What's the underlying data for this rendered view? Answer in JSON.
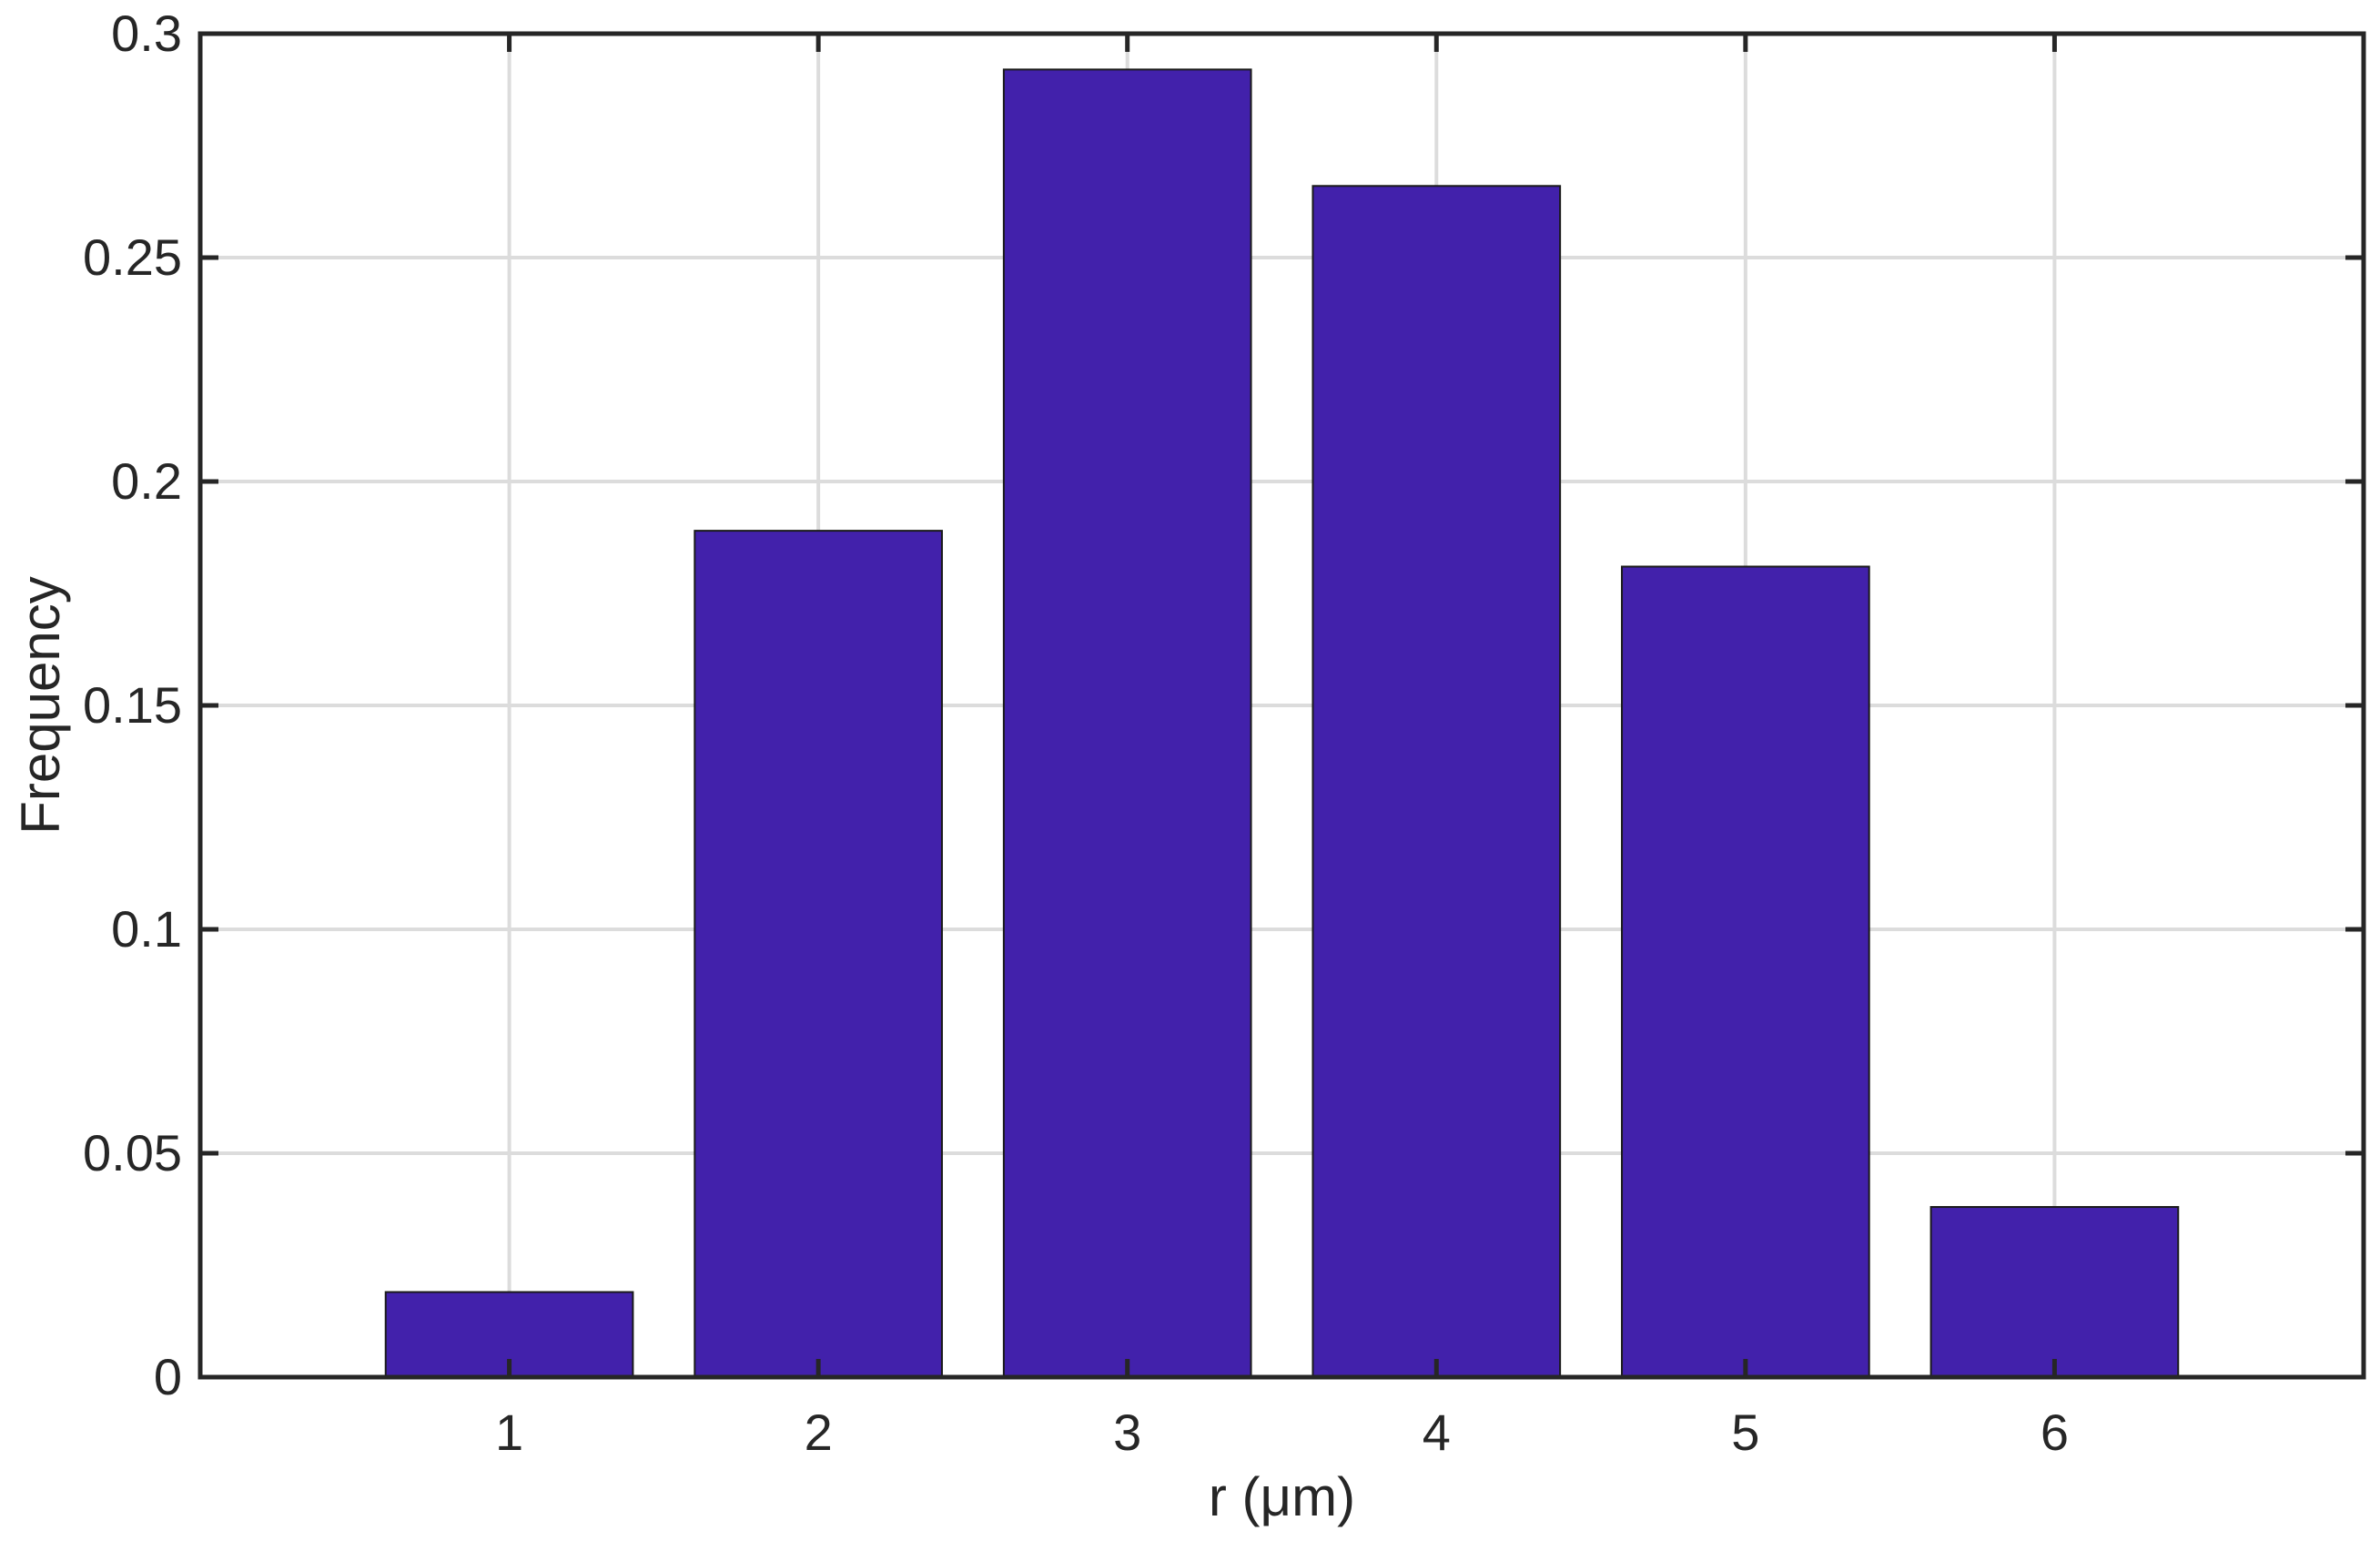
{
  "chart_data": {
    "type": "bar",
    "categories": [
      "1",
      "2",
      "3",
      "4",
      "5",
      "6"
    ],
    "values": [
      0.019,
      0.189,
      0.292,
      0.266,
      0.181,
      0.038
    ],
    "xlabel": "r (μm)",
    "ylabel": "Frequency",
    "xlim": [
      0,
      7
    ],
    "ylim": [
      0,
      0.3
    ],
    "yticks": [
      "0",
      "0.05",
      "0.1",
      "0.15",
      "0.2",
      "0.25",
      "0.3"
    ],
    "grid": true,
    "bar_color": "#4221ab"
  }
}
